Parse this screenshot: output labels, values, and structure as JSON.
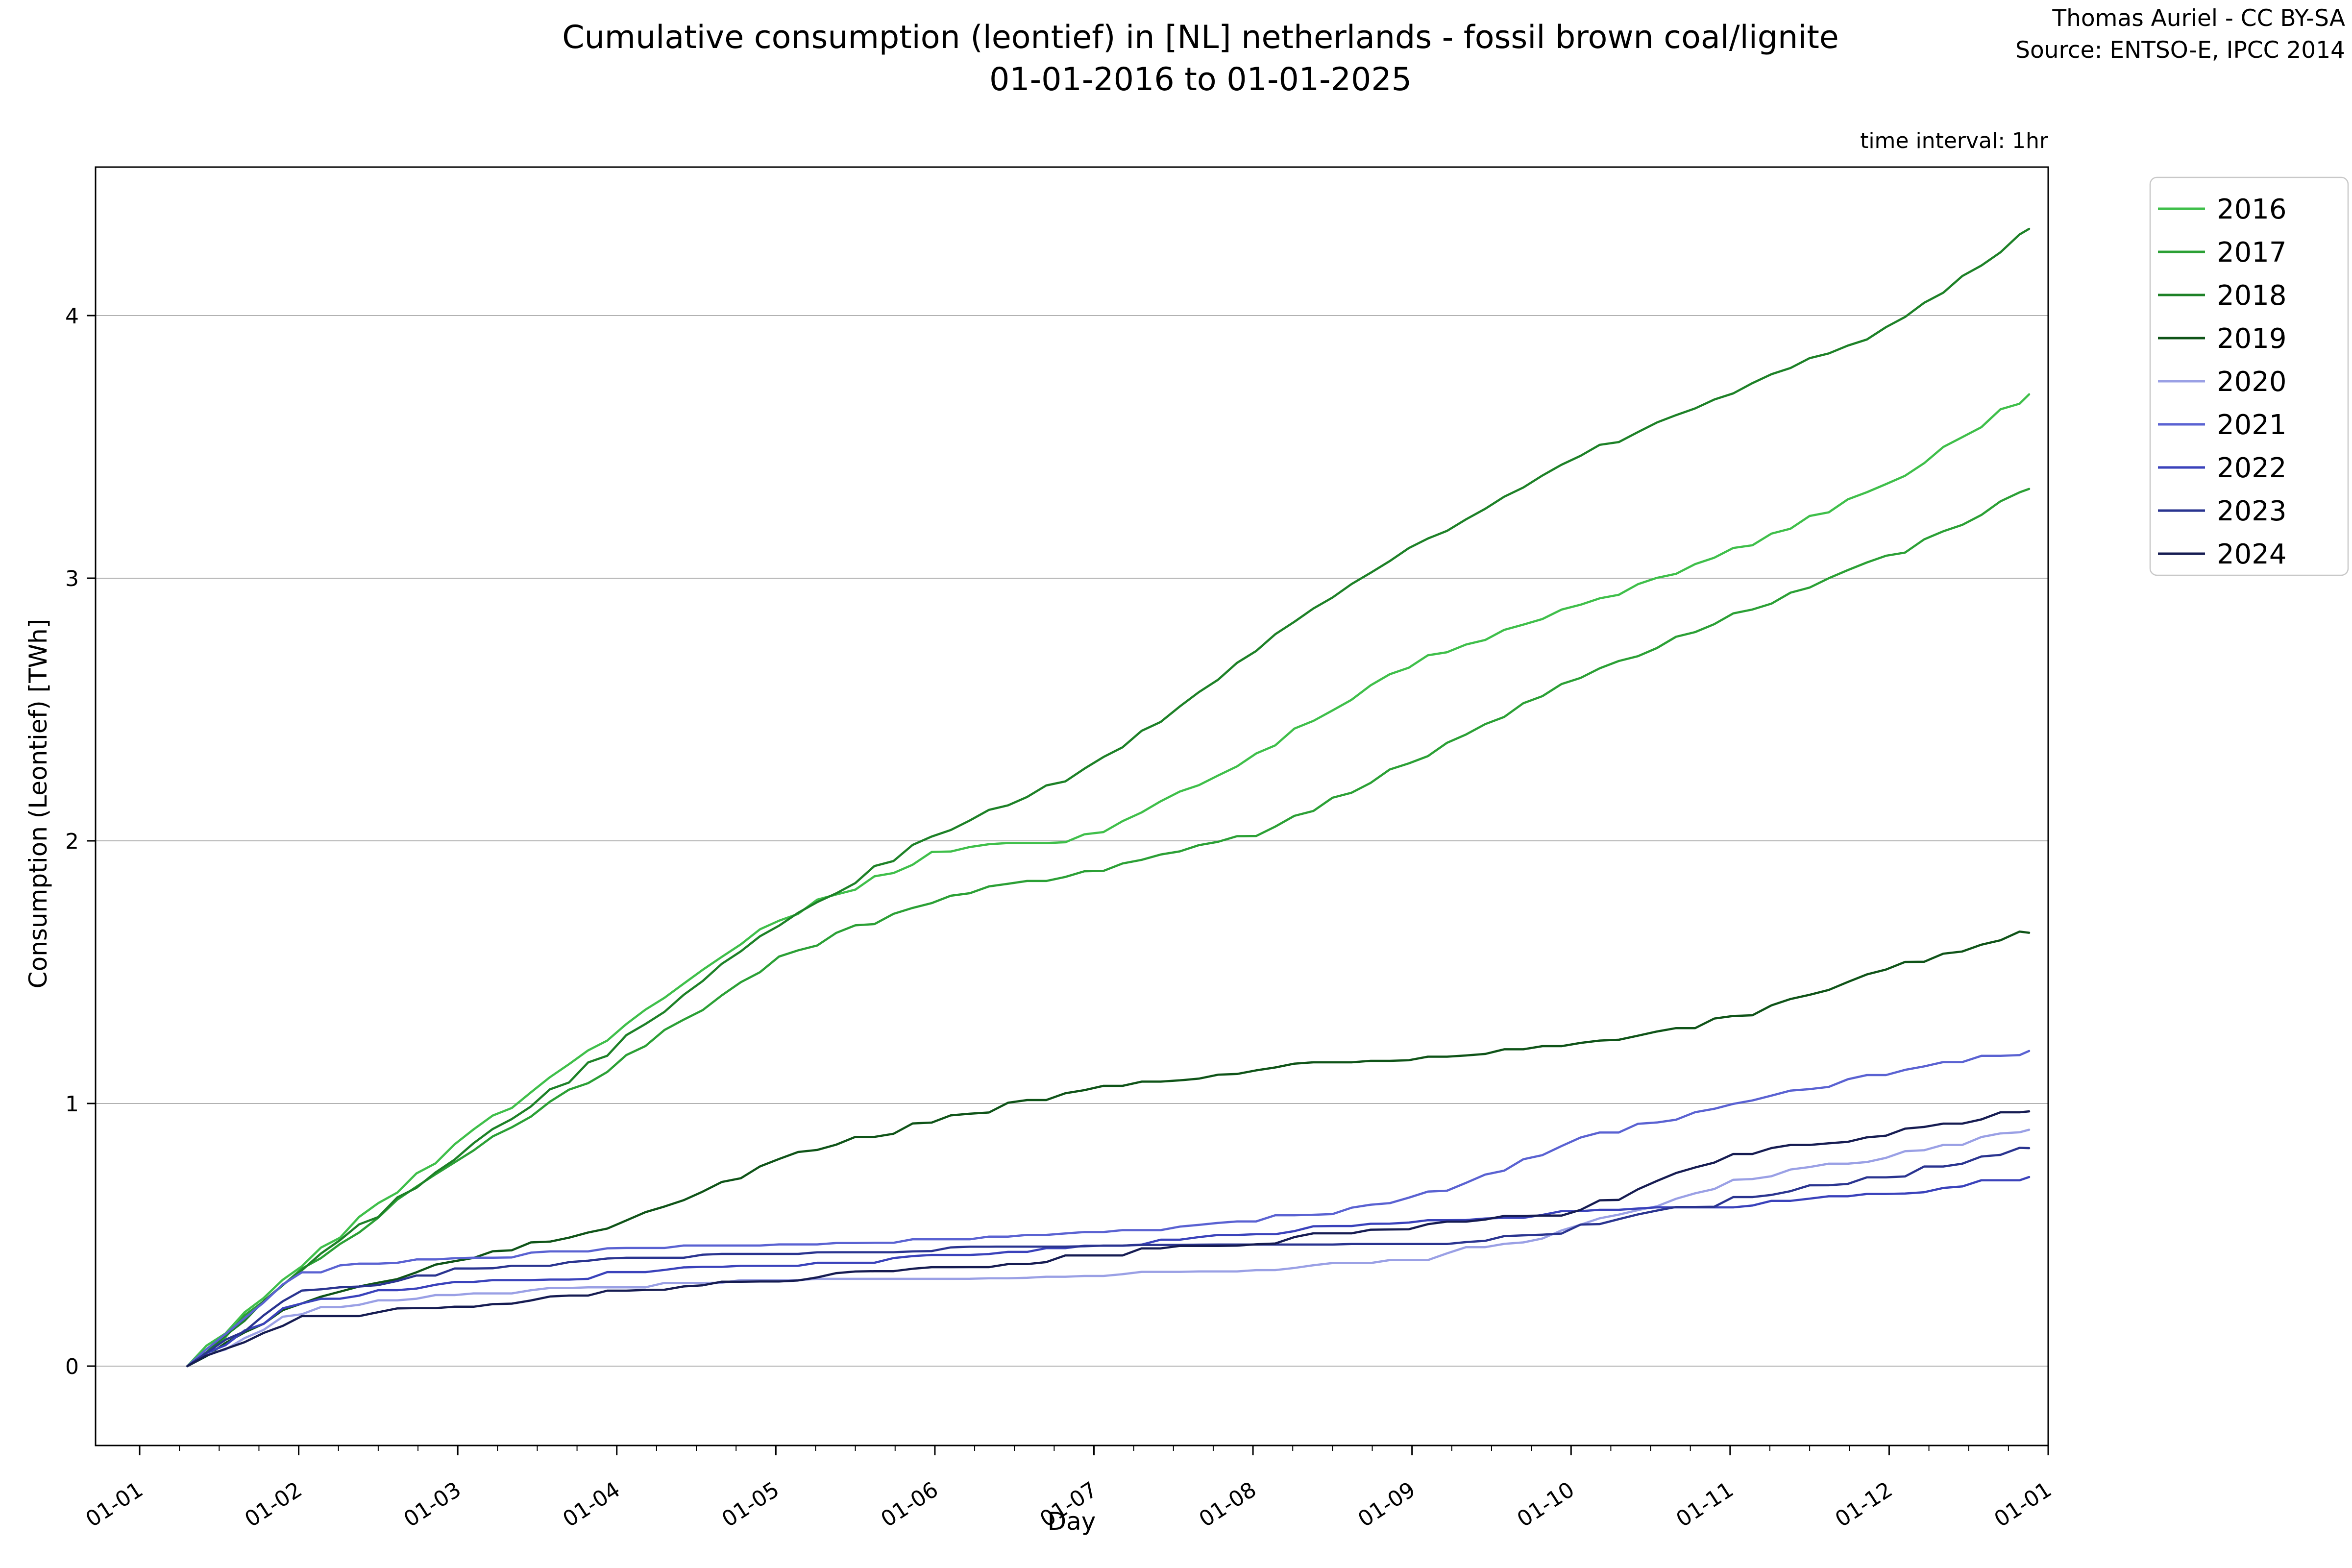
{
  "header": {
    "title_line1": "Cumulative consumption (leontief) in [NL] netherlands - fossil brown coal/lignite",
    "title_line2": "01-01-2016 to 01-01-2025",
    "credit_line1": "Thomas Auriel - CC BY-SA",
    "credit_line2": "Source: ENTSO-E, IPCC 2014",
    "time_interval_note": "time interval: 1hr"
  },
  "chart_data": {
    "type": "line",
    "title": "Cumulative consumption (leontief) in [NL] netherlands - fossil brown coal/lignite 01-01-2016 to 01-01-2025",
    "xlabel": "Day",
    "ylabel": "Consumption (Leontief) [TWh]",
    "x_tick_labels": [
      "01-01",
      "01-02",
      "01-03",
      "01-04",
      "01-05",
      "01-06",
      "01-07",
      "01-08",
      "01-09",
      "01-10",
      "01-11",
      "01-12",
      "01-01"
    ],
    "y_ticks": [
      0,
      1,
      2,
      3,
      4
    ],
    "ylim": [
      -0.3,
      4.57
    ],
    "xlim_months": [
      -0.28,
      12.0
    ],
    "grid": true,
    "grid_color": "#b2b2b2",
    "legend_position": "upper right outside",
    "data_start_month": 0.3,
    "data_end_month": 11.88,
    "anchor_months": [
      0.3,
      1,
      2,
      3,
      4,
      5,
      6,
      7,
      8,
      9,
      10,
      11,
      11.88
    ],
    "series": [
      {
        "name": "2016",
        "color": "#3fbf4a",
        "anchor_values": [
          0,
          0.38,
          0.85,
          1.27,
          1.7,
          1.95,
          2.02,
          2.32,
          2.68,
          2.88,
          3.1,
          3.36,
          3.7
        ]
      },
      {
        "name": "2017",
        "color": "#2ba035",
        "anchor_values": [
          0,
          0.36,
          0.78,
          1.15,
          1.55,
          1.78,
          1.88,
          2.02,
          2.3,
          2.62,
          2.85,
          3.08,
          3.34
        ]
      },
      {
        "name": "2018",
        "color": "#1d8127",
        "anchor_values": [
          0,
          0.36,
          0.8,
          1.22,
          1.68,
          2.02,
          2.28,
          2.72,
          3.12,
          3.45,
          3.7,
          3.95,
          4.33
        ]
      },
      {
        "name": "2019",
        "color": "#0f5418",
        "anchor_values": [
          0,
          0.24,
          0.4,
          0.54,
          0.78,
          0.94,
          1.05,
          1.13,
          1.17,
          1.22,
          1.32,
          1.52,
          1.65
        ]
      },
      {
        "name": "2020",
        "color": "#9aa0e5",
        "anchor_values": [
          0,
          0.21,
          0.27,
          0.3,
          0.32,
          0.33,
          0.34,
          0.36,
          0.4,
          0.52,
          0.7,
          0.8,
          0.9
        ]
      },
      {
        "name": "2021",
        "color": "#5a62d2",
        "anchor_values": [
          0,
          0.36,
          0.41,
          0.44,
          0.46,
          0.48,
          0.5,
          0.55,
          0.63,
          0.85,
          1.0,
          1.12,
          1.2
        ]
      },
      {
        "name": "2022",
        "color": "#3a42bb",
        "anchor_values": [
          0,
          0.25,
          0.31,
          0.35,
          0.38,
          0.41,
          0.45,
          0.5,
          0.56,
          0.58,
          0.6,
          0.66,
          0.72
        ]
      },
      {
        "name": "2023",
        "color": "#2a3490",
        "anchor_values": [
          0,
          0.28,
          0.36,
          0.4,
          0.42,
          0.44,
          0.45,
          0.45,
          0.46,
          0.52,
          0.63,
          0.72,
          0.83
        ]
      },
      {
        "name": "2024",
        "color": "#161c52",
        "anchor_values": [
          0,
          0.18,
          0.23,
          0.28,
          0.33,
          0.37,
          0.42,
          0.47,
          0.53,
          0.58,
          0.8,
          0.89,
          0.97
        ]
      }
    ]
  }
}
